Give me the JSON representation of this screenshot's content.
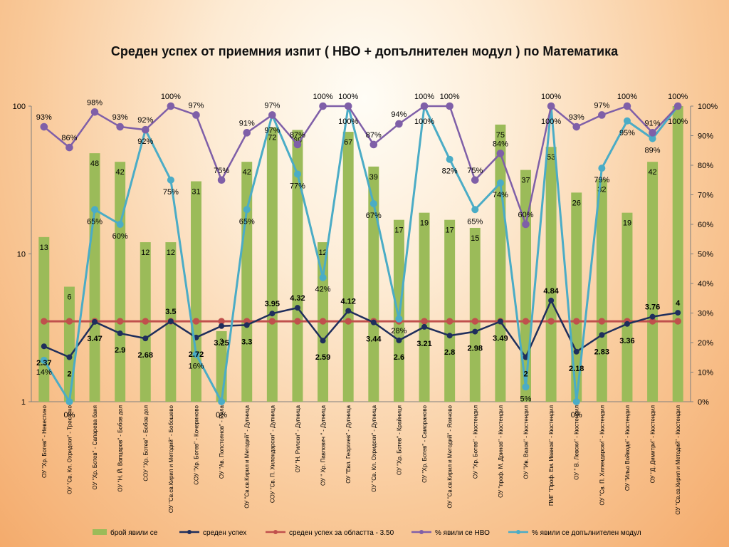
{
  "chart_data": {
    "type": "bar",
    "title": "Среден успех  от приемния изпит ( НВО + допълнителен модул ) по Математика",
    "categories": [
      "ОУ \"Хр. Ботев\" - Невестино",
      "ОУ \"Св. Кл. Охридски\" - Трекляно",
      "ОУ \"Хр. Ботев\" - Сапарева баня",
      "ОУ \"Н. Й. Вапцаров\" - Бобов дол",
      "СОУ \"Хр. Ботев\" - Бобов дол",
      "ОУ \"Св.св.Кирил и Методий\" - Бобошево",
      "СОУ \"Хр. Ботев\" - Кочериново",
      "ОУ \"Ав. Попстоянов\" - Рила",
      "ОУ \"Св.св.Кирил и Методий\" - Дупница",
      "СОУ \"Св. П. Хилендарски\" - Дупница",
      "ОУ \"Н. Рилски\" - Дупница",
      "ОУ \" Хр. Павлович \" - Дупница",
      "ОУ \"Евл. Георгиев\" - Дупница",
      "ОУ \"Св. Кл. Охридски\" - Дупница",
      "ОУ \"Хр. Ботев\" - Крайници",
      "ОУ \"Хр. Ботев\" - Самораново",
      "ОУ \"Св.св.Кирил и Методий\" - Яхиново",
      "ОУ \"Хр. Ботев\" - Кюстендил",
      "ОУ \"проф. М. Дринов\" - Кюстендил",
      "ОУ \"Ив. Вазов\" - Кюстендил",
      "ПМГ \"Проф. Ем. Иванов\" - Кюстендил",
      "ОУ \" В. Левски\" - Кюстендил",
      "ОУ \"Св. П. Хилендарски\" - Кюстендил",
      "ОУ \"Ильо Войвода\" - Кюстендил",
      "ОУ \"Д. Димитри\" - Кюстендил",
      "ОУ \"Св.св.Кирил и Методий\" - Кюстендил"
    ],
    "left_axis": {
      "scale": "log",
      "ylim": [
        1,
        100
      ],
      "ticks": [
        "1",
        "10",
        "100"
      ]
    },
    "right_axis": {
      "scale": "linear",
      "ylim": [
        0,
        1
      ],
      "ticks": [
        "0%",
        "10%",
        "20%",
        "30%",
        "40%",
        "50%",
        "60%",
        "70%",
        "80%",
        "90%",
        "100%"
      ]
    },
    "grid": false,
    "legend_position": "bottom",
    "series": [
      {
        "name": "брой явили се",
        "type": "bar",
        "axis": "left",
        "color": "#9bbb59",
        "values": [
          13,
          6,
          48,
          42,
          12,
          12,
          31,
          3,
          42,
          72,
          69,
          12,
          67,
          39,
          17,
          19,
          17,
          15,
          75,
          37,
          53,
          26,
          32,
          19,
          42,
          100
        ],
        "labels": [
          "13",
          "6",
          "48",
          "42",
          "12",
          "12",
          "31",
          "3",
          "42",
          "72",
          "69",
          "12",
          "67",
          "39",
          "17",
          "19",
          "17",
          "15",
          "75",
          "37",
          "53",
          "26",
          "32",
          "19",
          "42",
          ""
        ]
      },
      {
        "name": "среден успех",
        "type": "line",
        "axis": "left",
        "color": "#1f2e5c",
        "values": [
          2.37,
          2,
          3.47,
          2.9,
          2.68,
          3.5,
          2.72,
          3.25,
          3.3,
          3.95,
          4.32,
          2.59,
          4.12,
          3.44,
          2.6,
          3.21,
          2.8,
          2.98,
          3.49,
          2,
          4.84,
          2.18,
          2.83,
          3.36,
          3.76,
          4
        ],
        "labels": [
          "2.37",
          "2",
          "3.47",
          "2.9",
          "2.68",
          "3.5",
          "2.72",
          "3.25",
          "3.3",
          "3.95",
          "4.32",
          "2.59",
          "4.12",
          "3.44",
          "2.6",
          "3.21",
          "2.8",
          "2.98",
          "3.49",
          "2",
          "4.84",
          "2.18",
          "2.83",
          "3.36",
          "3.76",
          "4"
        ]
      },
      {
        "name": "среден успех за областта - 3.50",
        "type": "line",
        "axis": "left",
        "color": "#c0504d",
        "values": [
          3.5,
          3.5,
          3.5,
          3.5,
          3.5,
          3.5,
          3.5,
          3.5,
          3.5,
          3.5,
          3.5,
          3.5,
          3.5,
          3.5,
          3.5,
          3.5,
          3.5,
          3.5,
          3.5,
          3.5,
          3.5,
          3.5,
          3.5,
          3.5,
          3.5,
          3.5
        ]
      },
      {
        "name": "% явили се НВО",
        "type": "line",
        "axis": "right",
        "color": "#7f5fa8",
        "values": [
          0.93,
          0.86,
          0.98,
          0.93,
          0.92,
          1.0,
          0.97,
          0.75,
          0.91,
          0.97,
          0.87,
          1.0,
          1.0,
          0.87,
          0.94,
          1.0,
          1.0,
          0.75,
          0.84,
          0.6,
          1.0,
          0.93,
          0.97,
          1.0,
          0.91,
          1.0
        ],
        "labels": [
          "93%",
          "86%",
          "98%",
          "93%",
          "92%",
          "100%",
          "97%",
          "75%",
          "91%",
          "97%",
          "87%",
          "100%",
          "100%",
          "87%",
          "94%",
          "100%",
          "100%",
          "75%",
          "84%",
          "60%",
          "100%",
          "93%",
          "97%",
          "100%",
          "91%",
          "100%"
        ]
      },
      {
        "name": "% явили се допълнителен модул",
        "type": "line",
        "axis": "right",
        "color": "#4bacc6",
        "values": [
          0.14,
          0.0,
          0.65,
          0.6,
          0.92,
          0.75,
          0.16,
          0.0,
          0.65,
          0.97,
          0.77,
          0.42,
          1.0,
          0.67,
          0.28,
          1.0,
          0.82,
          0.65,
          0.74,
          0.05,
          1.0,
          0.0,
          0.79,
          0.95,
          0.89,
          1.0
        ],
        "labels": [
          "14%",
          "0%",
          "65%",
          "60%",
          "92%",
          "75%",
          "16%",
          "0%",
          "65%",
          "97%",
          "77%",
          "42%",
          "100%",
          "67%",
          "28%",
          "100%",
          "82%",
          "65%",
          "74%",
          "5%",
          "100%",
          "0%",
          "79%",
          "95%",
          "89%",
          "100%"
        ]
      }
    ]
  }
}
